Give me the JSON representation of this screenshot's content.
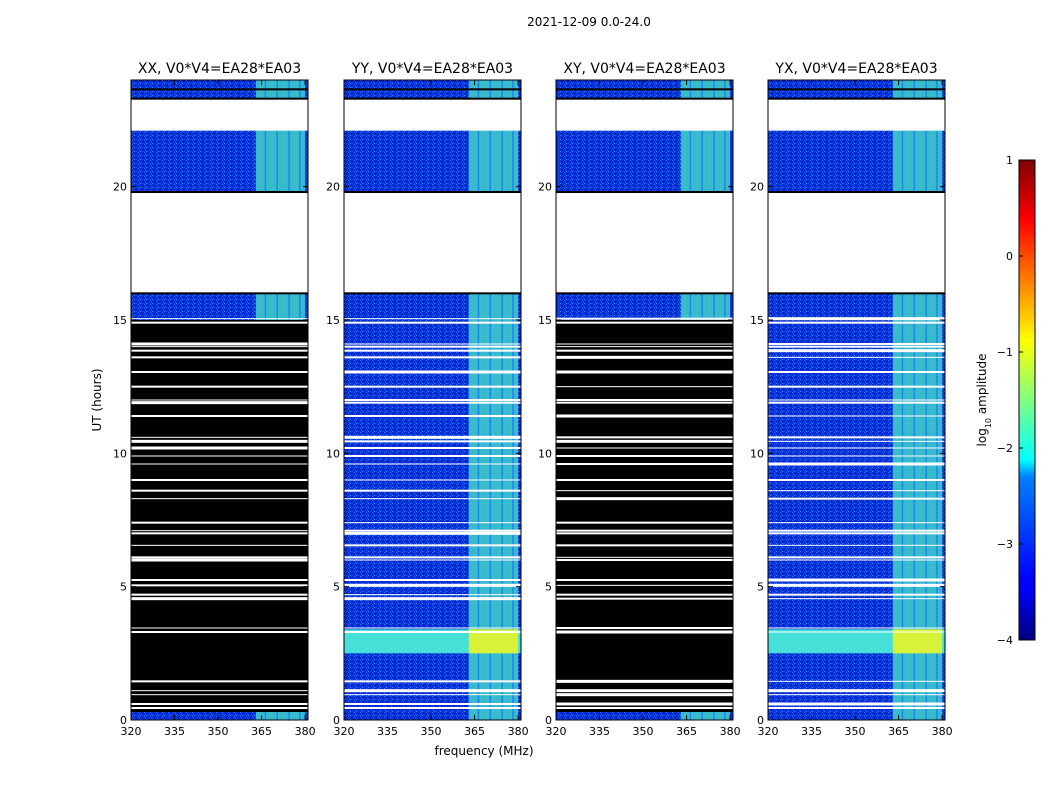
{
  "figure": {
    "suptitle": "2021-12-09 0.0-24.0"
  },
  "chart_data": {
    "type": "heatmap",
    "xlabel": "frequency (MHz)",
    "ylabel": "UT (hours)",
    "xlim": [
      320,
      381
    ],
    "ylim": [
      0,
      24
    ],
    "xticks": [
      320,
      335,
      350,
      365,
      380
    ],
    "yticks": [
      0,
      5,
      10,
      15,
      20
    ],
    "colorbar": {
      "label": "log10 amplitude",
      "label_base": "log",
      "label_sub": "10",
      "label_tail": " amplitude",
      "range": [
        -4,
        1
      ],
      "ticks": [
        1,
        0,
        -1,
        -2,
        -3,
        -4
      ],
      "tick_labels": [
        "1",
        "0",
        "−1",
        "−2",
        "−3",
        "−4"
      ],
      "colormap": "jet"
    },
    "panels": [
      {
        "id": "xx",
        "title": "XX, V0*V4=EA28*EA03",
        "flagged_black": true
      },
      {
        "id": "yy",
        "title": "YY, V0*V4=EA28*EA03",
        "flagged_black": false
      },
      {
        "id": "xy",
        "title": "XY, V0*V4=EA28*EA03",
        "flagged_black": true
      },
      {
        "id": "yx",
        "title": "YX, V0*V4=EA28*EA03",
        "flagged_black": false
      }
    ],
    "no_data_hours": [
      [
        16.0,
        19.8
      ],
      [
        22.1,
        23.3
      ]
    ],
    "bright_band_hours": [
      2.5,
      3.4
    ],
    "rfi_band_mhz": [
      363,
      380
    ],
    "colors": {
      "background": "#0a2cd8",
      "flag": "#000000",
      "gap": "#ffffff"
    }
  }
}
